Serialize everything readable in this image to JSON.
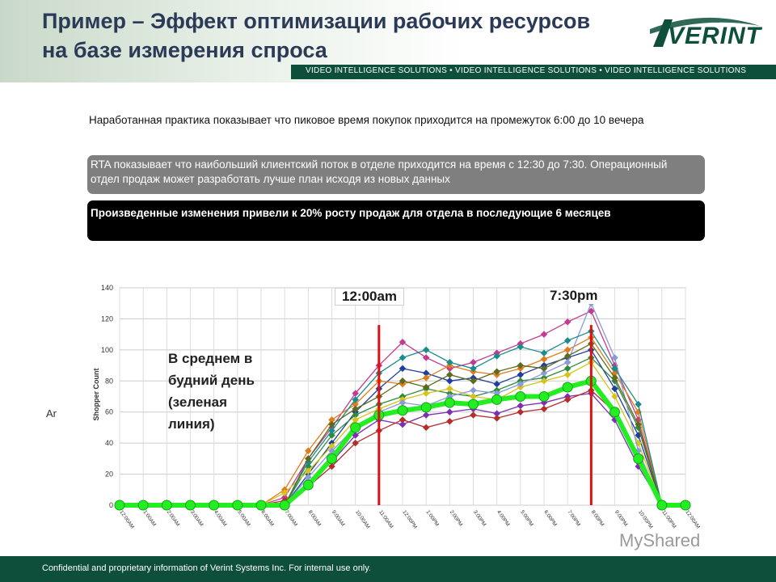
{
  "header": {
    "title": "Пример – Эффект оптимизации рабочих ресурсов на базе измерения спроса",
    "tagline": "VIDEO INTELLIGENCE SOLUTIONS • VIDEO INTELLIGENCE SOLUTIONS • VIDEO INTELLIGENCE SOLUTIONS",
    "logo_text": "VERINT"
  },
  "body": {
    "intro": "Наработанная практика показывает что пиковое время покупок приходится на промежуток 6:00 до 10 вечера",
    "rta_box": "RTA показывает что наибольший клиентский поток в отделе приходится на время с 12:30 до 7:30. Операционный отдел продаж может разработать лучше план исходя из новых данных",
    "result_box": "Произведенные изменения привели к 20% росту продаж для отдела в последующие 6 месяцев",
    "clipped_label": "Ar"
  },
  "chart_data": {
    "type": "line",
    "ylabel": "Shopper Count",
    "ylim": [
      0,
      140
    ],
    "yticks": [
      0,
      20,
      40,
      60,
      80,
      100,
      120,
      140
    ],
    "categories": [
      "12:00AM",
      "1:00AM",
      "2:00AM",
      "3:00AM",
      "4:00AM",
      "5:00AM",
      "6:00AM",
      "7:00AM",
      "8:00AM",
      "9:00AM",
      "10:00AM",
      "11:00AM",
      "12:00PM",
      "1:00PM",
      "2:00PM",
      "3:00PM",
      "4:00PM",
      "5:00PM",
      "6:00PM",
      "7:00PM",
      "8:00PM",
      "9:00PM",
      "10:00PM",
      "11:00PM",
      "12:00AM"
    ],
    "average_series": {
      "values": [
        0,
        0,
        0,
        0,
        0,
        0,
        0,
        0,
        13,
        30,
        50,
        58,
        61,
        63,
        66,
        65,
        68,
        70,
        70,
        76,
        80,
        60,
        30,
        0,
        0
      ],
      "color": "#22ee22"
    },
    "daily_series": [
      {
        "values": [
          0,
          0,
          0,
          0,
          0,
          0,
          0,
          0,
          20,
          40,
          60,
          75,
          88,
          85,
          80,
          82,
          78,
          84,
          90,
          95,
          100,
          75,
          45,
          0,
          0
        ],
        "color": "#1f3f9e"
      },
      {
        "values": [
          0,
          0,
          0,
          0,
          0,
          0,
          0,
          5,
          30,
          50,
          72,
          90,
          105,
          95,
          88,
          92,
          98,
          104,
          110,
          118,
          125,
          90,
          55,
          0,
          0
        ],
        "color": "#c23b8f"
      },
      {
        "values": [
          0,
          0,
          0,
          0,
          0,
          0,
          0,
          0,
          25,
          45,
          58,
          65,
          70,
          75,
          72,
          70,
          74,
          80,
          82,
          88,
          95,
          80,
          50,
          0,
          0
        ],
        "color": "#2e8b3a"
      },
      {
        "values": [
          0,
          0,
          0,
          0,
          0,
          0,
          0,
          10,
          35,
          55,
          65,
          80,
          78,
          82,
          90,
          86,
          84,
          88,
          94,
          100,
          108,
          85,
          60,
          0,
          0
        ],
        "color": "#e07b1a"
      },
      {
        "values": [
          0,
          0,
          0,
          0,
          0,
          0,
          0,
          0,
          15,
          28,
          45,
          55,
          52,
          58,
          60,
          62,
          59,
          64,
          66,
          70,
          72,
          55,
          25,
          0,
          0
        ],
        "color": "#7b2fb5"
      },
      {
        "values": [
          0,
          0,
          0,
          0,
          0,
          0,
          0,
          8,
          22,
          38,
          55,
          62,
          68,
          72,
          75,
          70,
          68,
          76,
          80,
          84,
          92,
          70,
          40,
          0,
          0
        ],
        "color": "#d6c21c"
      },
      {
        "values": [
          0,
          0,
          0,
          0,
          0,
          0,
          0,
          0,
          18,
          35,
          50,
          60,
          66,
          64,
          70,
          74,
          72,
          78,
          85,
          92,
          130,
          95,
          35,
          0,
          0
        ],
        "color": "#8a9bd6"
      },
      {
        "values": [
          0,
          0,
          0,
          0,
          0,
          0,
          0,
          0,
          28,
          48,
          68,
          85,
          95,
          100,
          92,
          88,
          96,
          102,
          98,
          106,
          112,
          88,
          65,
          0,
          0
        ],
        "color": "#1b8c8c"
      },
      {
        "values": [
          0,
          0,
          0,
          0,
          0,
          0,
          0,
          3,
          12,
          25,
          40,
          48,
          55,
          50,
          54,
          58,
          56,
          60,
          62,
          68,
          74,
          60,
          28,
          0,
          0
        ],
        "color": "#b52e2e"
      },
      {
        "values": [
          0,
          0,
          0,
          0,
          0,
          0,
          0,
          0,
          30,
          52,
          62,
          70,
          80,
          76,
          84,
          80,
          86,
          90,
          88,
          96,
          104,
          82,
          52,
          0,
          0
        ],
        "color": "#5d6a1f"
      }
    ],
    "reference_lines": [
      {
        "label": "12:00am",
        "x": "11:00AM",
        "color": "#dd1111"
      },
      {
        "label": "7:30pm",
        "x": "8:00PM",
        "color": "#dd1111"
      }
    ],
    "annotation": "В среднем в будний день (зеленая линия)"
  },
  "footer": {
    "text": "Confidential and proprietary information of Verint Systems Inc. For internal use only.",
    "watermark": "MyShared"
  },
  "colors": {
    "brand_green": "#0d4f3b",
    "title_blue": "#2b3a57",
    "grid": "#cccccc"
  }
}
